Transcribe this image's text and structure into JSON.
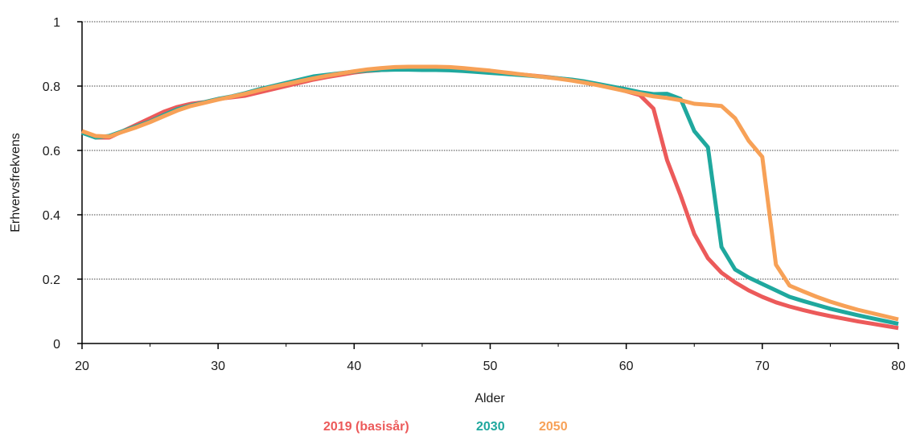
{
  "chart_data": {
    "type": "line",
    "xlabel": "Alder",
    "ylabel": "Erhvervsfrekvens",
    "xlim": [
      20,
      80
    ],
    "ylim": [
      0,
      1
    ],
    "x_ticks": [
      "20",
      "30",
      "40",
      "50",
      "60",
      "70",
      "80"
    ],
    "y_ticks": [
      "0",
      "0.2",
      "0.4",
      "0.6",
      "0.8",
      "1"
    ],
    "grid": "horizontal-dotted",
    "legend_position": "bottom",
    "series": [
      {
        "name": "2019 (basisår)",
        "color": "#ec5a5a",
        "x": [
          20,
          21,
          22,
          23,
          24,
          25,
          26,
          27,
          28,
          29,
          30,
          31,
          32,
          33,
          34,
          35,
          36,
          37,
          38,
          39,
          40,
          41,
          42,
          43,
          44,
          45,
          46,
          47,
          48,
          49,
          50,
          51,
          52,
          53,
          54,
          55,
          56,
          57,
          58,
          59,
          60,
          61,
          62,
          63,
          64,
          65,
          66,
          67,
          68,
          69,
          70,
          71,
          72,
          73,
          74,
          75,
          76,
          77,
          78,
          79,
          80
        ],
        "y": [
          0.66,
          0.64,
          0.64,
          0.66,
          0.68,
          0.7,
          0.72,
          0.735,
          0.745,
          0.75,
          0.76,
          0.765,
          0.77,
          0.78,
          0.79,
          0.8,
          0.81,
          0.82,
          0.828,
          0.835,
          0.842,
          0.847,
          0.85,
          0.852,
          0.853,
          0.853,
          0.853,
          0.852,
          0.849,
          0.846,
          0.843,
          0.84,
          0.837,
          0.833,
          0.829,
          0.824,
          0.819,
          0.812,
          0.804,
          0.795,
          0.784,
          0.772,
          0.73,
          0.57,
          0.46,
          0.34,
          0.265,
          0.22,
          0.19,
          0.165,
          0.145,
          0.128,
          0.115,
          0.104,
          0.094,
          0.085,
          0.077,
          0.069,
          0.062,
          0.055,
          0.048
        ]
      },
      {
        "name": "2030",
        "color": "#1fa89e",
        "x": [
          20,
          21,
          22,
          23,
          24,
          25,
          26,
          27,
          28,
          29,
          30,
          31,
          32,
          33,
          34,
          35,
          36,
          37,
          38,
          39,
          40,
          41,
          42,
          43,
          44,
          45,
          46,
          47,
          48,
          49,
          50,
          51,
          52,
          53,
          54,
          55,
          56,
          57,
          58,
          59,
          60,
          61,
          62,
          63,
          64,
          65,
          66,
          67,
          68,
          69,
          70,
          71,
          72,
          73,
          74,
          75,
          76,
          77,
          78,
          79,
          80
        ],
        "y": [
          0.655,
          0.64,
          0.645,
          0.66,
          0.675,
          0.69,
          0.71,
          0.728,
          0.74,
          0.75,
          0.76,
          0.768,
          0.778,
          0.79,
          0.8,
          0.81,
          0.82,
          0.83,
          0.835,
          0.84,
          0.845,
          0.848,
          0.85,
          0.851,
          0.851,
          0.85,
          0.85,
          0.849,
          0.847,
          0.844,
          0.841,
          0.838,
          0.835,
          0.832,
          0.828,
          0.824,
          0.82,
          0.814,
          0.806,
          0.798,
          0.79,
          0.781,
          0.775,
          0.776,
          0.76,
          0.66,
          0.61,
          0.3,
          0.23,
          0.205,
          0.185,
          0.165,
          0.145,
          0.132,
          0.12,
          0.108,
          0.098,
          0.088,
          0.079,
          0.07,
          0.061
        ]
      },
      {
        "name": "2050",
        "color": "#f7a157",
        "x": [
          20,
          21,
          22,
          23,
          24,
          25,
          26,
          27,
          28,
          29,
          30,
          31,
          32,
          33,
          34,
          35,
          36,
          37,
          38,
          39,
          40,
          41,
          42,
          43,
          44,
          45,
          46,
          47,
          48,
          49,
          50,
          51,
          52,
          53,
          54,
          55,
          56,
          57,
          58,
          59,
          60,
          61,
          62,
          63,
          64,
          65,
          66,
          67,
          68,
          69,
          70,
          71,
          72,
          73,
          74,
          75,
          76,
          77,
          78,
          79,
          80
        ],
        "y": [
          0.66,
          0.645,
          0.643,
          0.658,
          0.672,
          0.688,
          0.706,
          0.724,
          0.738,
          0.748,
          0.758,
          0.767,
          0.776,
          0.787,
          0.797,
          0.806,
          0.815,
          0.824,
          0.832,
          0.839,
          0.846,
          0.852,
          0.856,
          0.859,
          0.86,
          0.86,
          0.86,
          0.859,
          0.856,
          0.852,
          0.848,
          0.843,
          0.838,
          0.833,
          0.828,
          0.823,
          0.817,
          0.81,
          0.802,
          0.793,
          0.784,
          0.776,
          0.768,
          0.763,
          0.756,
          0.745,
          0.742,
          0.738,
          0.7,
          0.63,
          0.58,
          0.245,
          0.18,
          0.162,
          0.145,
          0.13,
          0.117,
          0.105,
          0.095,
          0.085,
          0.075
        ]
      }
    ]
  }
}
